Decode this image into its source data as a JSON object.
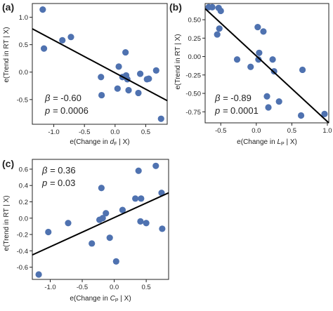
{
  "chart_data": [
    {
      "panel": "(a)",
      "type": "scatter",
      "xlabel": {
        "prefix": "e(Change in ",
        "var": "d",
        "sub": "F",
        "suffix": " | X)"
      },
      "ylabel": "e(Trend in RT | X)",
      "xlim": [
        -1.35,
        0.85
      ],
      "ylim": [
        -0.95,
        1.25
      ],
      "xticks": [
        -1.0,
        -0.5,
        0.0,
        0.5
      ],
      "xtick_labels": [
        "-1.0",
        "-0.5",
        "0.0",
        "0.5"
      ],
      "yticks": [
        -0.5,
        0.0,
        0.5,
        1.0
      ],
      "ytick_labels": [
        "-0.5",
        "0.0",
        "0.5",
        "1.0"
      ],
      "grid": false,
      "points": [
        {
          "x": -1.18,
          "y": 1.14
        },
        {
          "x": -1.16,
          "y": 0.43
        },
        {
          "x": -0.86,
          "y": 0.58
        },
        {
          "x": -0.72,
          "y": 0.64
        },
        {
          "x": -0.23,
          "y": -0.09
        },
        {
          "x": -0.22,
          "y": -0.42
        },
        {
          "x": 0.04,
          "y": -0.3
        },
        {
          "x": 0.06,
          "y": 0.1
        },
        {
          "x": 0.12,
          "y": -0.09
        },
        {
          "x": 0.17,
          "y": 0.36
        },
        {
          "x": 0.18,
          "y": -0.06
        },
        {
          "x": 0.2,
          "y": -0.13
        },
        {
          "x": 0.22,
          "y": -0.33
        },
        {
          "x": 0.38,
          "y": -0.38
        },
        {
          "x": 0.41,
          "y": -0.03
        },
        {
          "x": 0.52,
          "y": -0.13
        },
        {
          "x": 0.55,
          "y": -0.12
        },
        {
          "x": 0.67,
          "y": 0.03
        },
        {
          "x": 0.75,
          "y": -0.85
        }
      ],
      "fit": {
        "x": [
          -1.35,
          0.85
        ],
        "y": [
          0.79,
          -0.52
        ]
      },
      "stats": {
        "beta_label": "β = ",
        "beta": "-0.60",
        "p_label": "p = ",
        "p": "0.0006"
      }
    },
    {
      "panel": "(b)",
      "type": "scatter",
      "xlabel": {
        "prefix": "e(Change in ",
        "var": "L",
        "sub": "P",
        "suffix": " | X)"
      },
      "ylabel": "e(Trend in RT | X)",
      "xlim": [
        -0.72,
        1.02
      ],
      "ylim": [
        -0.9,
        0.72
      ],
      "xticks": [
        -0.5,
        0.0,
        0.5,
        1.0
      ],
      "xtick_labels": [
        "-0.5",
        "0.0",
        "0.5",
        "1.0"
      ],
      "yticks": [
        -0.75,
        -0.5,
        -0.25,
        0.0,
        0.25,
        0.5
      ],
      "ytick_labels": [
        "-0.75",
        "-0.50",
        "-0.25",
        "0.00",
        "0.25",
        "0.50"
      ],
      "grid": false,
      "points": [
        {
          "x": -0.67,
          "y": 0.67
        },
        {
          "x": -0.62,
          "y": 0.67
        },
        {
          "x": -0.53,
          "y": 0.66
        },
        {
          "x": -0.5,
          "y": 0.62
        },
        {
          "x": -0.52,
          "y": 0.38
        },
        {
          "x": -0.55,
          "y": 0.3
        },
        {
          "x": -0.27,
          "y": -0.04
        },
        {
          "x": -0.08,
          "y": -0.14
        },
        {
          "x": 0.02,
          "y": 0.4
        },
        {
          "x": 0.03,
          "y": -0.04
        },
        {
          "x": 0.04,
          "y": 0.05
        },
        {
          "x": 0.1,
          "y": 0.34
        },
        {
          "x": 0.23,
          "y": -0.04
        },
        {
          "x": 0.25,
          "y": -0.2
        },
        {
          "x": 0.15,
          "y": -0.54
        },
        {
          "x": 0.17,
          "y": -0.69
        },
        {
          "x": 0.32,
          "y": -0.61
        },
        {
          "x": 0.63,
          "y": -0.8
        },
        {
          "x": 0.65,
          "y": -0.18
        },
        {
          "x": 0.96,
          "y": -0.78
        }
      ],
      "fit": {
        "x": [
          -0.72,
          1.02
        ],
        "y": [
          0.65,
          -0.9
        ]
      },
      "stats": {
        "beta_label": "β = ",
        "beta": "-0.89",
        "p_label": "p = ",
        "p": "0.0001"
      }
    },
    {
      "panel": "(c)",
      "type": "scatter",
      "xlabel": {
        "prefix": "e(Change in ",
        "var": "C",
        "sub": "P",
        "suffix": " | X)"
      },
      "ylabel": "e(Trend in RT | X)",
      "xlim": [
        -1.28,
        0.85
      ],
      "ylim": [
        -0.75,
        0.72
      ],
      "xticks": [
        -1.0,
        -0.5,
        0.0,
        0.5
      ],
      "xtick_labels": [
        "-1.0",
        "-0.5",
        "0.0",
        "0.5"
      ],
      "yticks": [
        -0.6,
        -0.4,
        -0.2,
        0.0,
        0.2,
        0.4,
        0.6
      ],
      "ytick_labels": [
        "-0.6",
        "-0.4",
        "-0.2",
        "0.0",
        "0.2",
        "0.4",
        "0.6"
      ],
      "grid": false,
      "points": [
        {
          "x": -1.18,
          "y": -0.69
        },
        {
          "x": -1.03,
          "y": -0.17
        },
        {
          "x": -0.72,
          "y": -0.06
        },
        {
          "x": -0.35,
          "y": -0.31
        },
        {
          "x": -0.23,
          "y": -0.02
        },
        {
          "x": -0.2,
          "y": 0.37
        },
        {
          "x": -0.18,
          "y": 0.0
        },
        {
          "x": -0.13,
          "y": 0.06
        },
        {
          "x": -0.07,
          "y": -0.24
        },
        {
          "x": 0.03,
          "y": -0.53
        },
        {
          "x": 0.13,
          "y": 0.1
        },
        {
          "x": 0.33,
          "y": 0.24
        },
        {
          "x": 0.38,
          "y": 0.58
        },
        {
          "x": 0.41,
          "y": -0.04
        },
        {
          "x": 0.42,
          "y": 0.24
        },
        {
          "x": 0.5,
          "y": -0.06
        },
        {
          "x": 0.65,
          "y": 0.64
        },
        {
          "x": 0.74,
          "y": 0.31
        },
        {
          "x": 0.75,
          "y": -0.13
        }
      ],
      "fit": {
        "x": [
          -1.28,
          0.85
        ],
        "y": [
          -0.45,
          0.31
        ]
      },
      "stats": {
        "beta_label": "β = ",
        "beta": "0.36",
        "p_label": "p = ",
        "p": "0.03"
      }
    }
  ],
  "colors": {
    "point": "#4f72b0",
    "fit": "#000000"
  }
}
